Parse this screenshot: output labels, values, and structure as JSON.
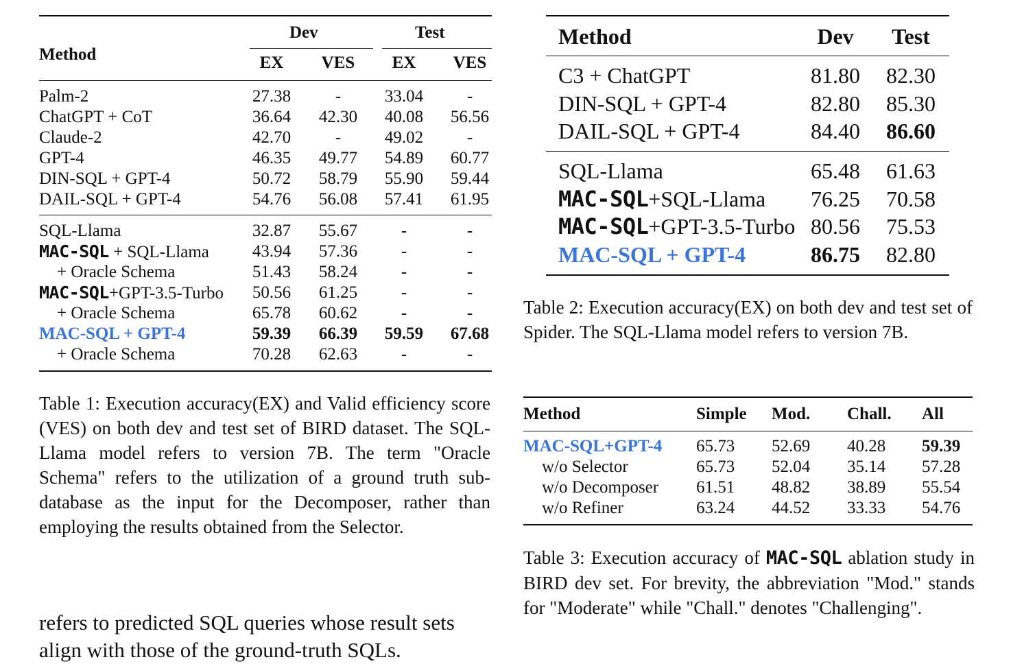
{
  "table1": {
    "header": {
      "method": "Method",
      "dev": "Dev",
      "test": "Test",
      "ex": "EX",
      "ves": "VES"
    },
    "group1": [
      {
        "method": "Palm-2",
        "dev_ex": "27.38",
        "dev_ves": "-",
        "test_ex": "33.04",
        "test_ves": "-"
      },
      {
        "method": "ChatGPT + CoT",
        "dev_ex": "36.64",
        "dev_ves": "42.30",
        "test_ex": "40.08",
        "test_ves": "56.56"
      },
      {
        "method": "Claude-2",
        "dev_ex": "42.70",
        "dev_ves": "-",
        "test_ex": "49.02",
        "test_ves": "-"
      },
      {
        "method": "GPT-4",
        "dev_ex": "46.35",
        "dev_ves": "49.77",
        "test_ex": "54.89",
        "test_ves": "60.77"
      },
      {
        "method": "DIN-SQL + GPT-4",
        "dev_ex": "50.72",
        "dev_ves": "58.79",
        "test_ex": "55.90",
        "test_ves": "59.44"
      },
      {
        "method": "DAIL-SQL + GPT-4",
        "dev_ex": "54.76",
        "dev_ves": "56.08",
        "test_ex": "57.41",
        "test_ves": "61.95"
      }
    ],
    "group2": [
      {
        "method": "SQL-Llama",
        "dev_ex": "32.87",
        "dev_ves": "55.67",
        "test_ex": "-",
        "test_ves": "-"
      },
      {
        "mono": "MAC-SQL",
        "method": " + SQL-Llama",
        "dev_ex": "43.94",
        "dev_ves": "57.36",
        "test_ex": "-",
        "test_ves": "-"
      },
      {
        "method": "+ Oracle Schema",
        "indent": true,
        "dev_ex": "51.43",
        "dev_ves": "58.24",
        "test_ex": "-",
        "test_ves": "-"
      },
      {
        "mono": "MAC-SQL",
        "method": "+GPT-3.5-Turbo",
        "dev_ex": "50.56",
        "dev_ves": "61.25",
        "test_ex": "-",
        "test_ves": "-"
      },
      {
        "method": "+ Oracle Schema",
        "indent": true,
        "dev_ex": "65.78",
        "dev_ves": "60.62",
        "test_ex": "-",
        "test_ves": "-"
      },
      {
        "method": "MAC-SQL + GPT-4",
        "highlight": true,
        "bold": true,
        "dev_ex": "59.39",
        "dev_ves": "66.39",
        "test_ex": "59.59",
        "test_ves": "67.68"
      },
      {
        "method": "+ Oracle Schema",
        "indent": true,
        "dev_ex": "70.28",
        "dev_ves": "62.63",
        "test_ex": "-",
        "test_ves": "-"
      }
    ],
    "caption": "Table 1: Execution accuracy(EX) and Valid efficiency score (VES) on both dev and test set of BIRD dataset. The SQL-Llama model refers to version 7B. The term \"Oracle Schema\" refers to the utilization of a ground truth sub-database as the input for the Decomposer, rather than employing the results obtained from the Selector."
  },
  "body_text": "refers to predicted SQL queries whose result sets align with those of the ground-truth SQLs.",
  "table2": {
    "header": {
      "method": "Method",
      "dev": "Dev",
      "test": "Test"
    },
    "group1": [
      {
        "method": "C3 + ChatGPT",
        "dev": "81.80",
        "test": "82.30"
      },
      {
        "method": "DIN-SQL + GPT-4",
        "dev": "82.80",
        "test": "85.30"
      },
      {
        "method": "DAIL-SQL + GPT-4",
        "dev": "84.40",
        "test": "86.60",
        "bold_test": true
      }
    ],
    "group2": [
      {
        "method": "SQL-Llama",
        "dev": "65.48",
        "test": "61.63"
      },
      {
        "mono": "MAC-SQL",
        "method": "+SQL-Llama",
        "dev": "76.25",
        "test": "70.58"
      },
      {
        "mono": "MAC-SQL",
        "method": "+GPT-3.5-Turbo",
        "dev": "80.56",
        "test": "75.53"
      },
      {
        "method": "MAC-SQL + GPT-4",
        "highlight": true,
        "dev": "86.75",
        "test": "82.80",
        "bold_dev": true
      }
    ],
    "caption": "Table 2: Execution accuracy(EX) on both dev and test set of Spider. The SQL-Llama model refers to version 7B."
  },
  "table3": {
    "header": {
      "method": "Method",
      "simple": "Simple",
      "mod": "Mod.",
      "chall": "Chall.",
      "all": "All"
    },
    "rows": [
      {
        "method": "MAC-SQL+GPT-4",
        "highlight": true,
        "simple": "65.73",
        "mod": "52.69",
        "chall": "40.28",
        "all": "59.39",
        "bold_all": true
      },
      {
        "method": "w/o Selector",
        "indent": true,
        "simple": "65.73",
        "mod": "52.04",
        "chall": "35.14",
        "all": "57.28"
      },
      {
        "method": "w/o Decomposer",
        "indent": true,
        "simple": "61.51",
        "mod": "48.82",
        "chall": "38.89",
        "all": "55.54"
      },
      {
        "method": "w/o Refiner",
        "indent": true,
        "simple": "63.24",
        "mod": "44.52",
        "chall": "33.33",
        "all": "54.76"
      }
    ],
    "caption_prefix": "Table 3: Execution accuracy of ",
    "caption_mono": "MAC-SQL",
    "caption_suffix": " ablation study in BIRD dev set. For brevity, the abbreviation \"Mod.\" stands for \"Moderate\" while \"Chall.\" denotes \"Challenging\"."
  },
  "colors": {
    "highlight": "#3b74d9",
    "text": "#111111"
  }
}
